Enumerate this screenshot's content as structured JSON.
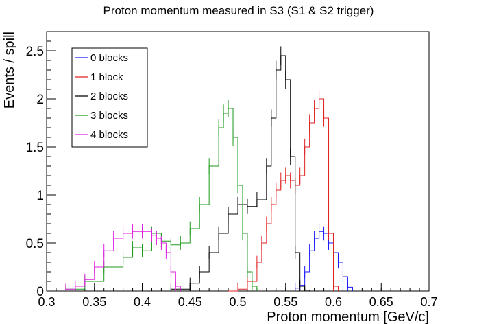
{
  "chart_data": {
    "type": "line",
    "title": "Proton momentum measured in S3 (S1 & S2 trigger)",
    "xlabel": "Proton momentum [GeV/c]",
    "ylabel": "Events / spill",
    "xlim": [
      0.3,
      0.7
    ],
    "ylim": [
      0,
      2.7
    ],
    "xticks": [
      "0.3",
      "0.35",
      "0.4",
      "0.45",
      "0.5",
      "0.55",
      "0.6",
      "0.65",
      "0.7"
    ],
    "yticks": [
      "0",
      "0.5",
      "1",
      "1.5",
      "2",
      "2.5"
    ],
    "legend_position": "top-left",
    "series": [
      {
        "name": "0 blocks",
        "color": "#1a1aff",
        "x": [
          0.56,
          0.565,
          0.57,
          0.575,
          0.58,
          0.585,
          0.59,
          0.595,
          0.6,
          0.605,
          0.61,
          0.615,
          0.62
        ],
        "y": [
          0.03,
          0.06,
          0.2,
          0.42,
          0.55,
          0.62,
          0.6,
          0.5,
          0.4,
          0.3,
          0.15,
          0.04,
          0.0
        ]
      },
      {
        "name": "1 block",
        "color": "#e02020",
        "x": [
          0.49,
          0.5,
          0.51,
          0.52,
          0.525,
          0.53,
          0.535,
          0.54,
          0.545,
          0.55,
          0.555,
          0.56,
          0.565,
          0.57,
          0.575,
          0.58,
          0.585,
          0.59,
          0.595,
          0.6,
          0.605
        ],
        "y": [
          0.0,
          0.02,
          0.1,
          0.3,
          0.5,
          0.7,
          0.9,
          1.05,
          1.15,
          1.2,
          1.15,
          1.1,
          1.2,
          1.5,
          1.75,
          1.9,
          2.0,
          1.8,
          0.6,
          0.05,
          0.0
        ]
      },
      {
        "name": "2 blocks",
        "color": "#000000",
        "x": [
          0.43,
          0.45,
          0.46,
          0.47,
          0.48,
          0.49,
          0.5,
          0.51,
          0.52,
          0.53,
          0.535,
          0.54,
          0.545,
          0.55,
          0.555,
          0.56,
          0.565,
          0.57,
          0.575
        ],
        "y": [
          0.02,
          0.08,
          0.2,
          0.4,
          0.6,
          0.8,
          0.9,
          0.88,
          0.95,
          1.3,
          1.8,
          2.3,
          2.45,
          2.2,
          1.4,
          0.4,
          0.05,
          0.01,
          0.0
        ]
      },
      {
        "name": "3 blocks",
        "color": "#1c9a1c",
        "x": [
          0.32,
          0.34,
          0.36,
          0.38,
          0.39,
          0.4,
          0.41,
          0.42,
          0.43,
          0.44,
          0.45,
          0.46,
          0.47,
          0.48,
          0.485,
          0.49,
          0.495,
          0.5,
          0.505,
          0.51,
          0.515,
          0.52
        ],
        "y": [
          0.02,
          0.1,
          0.25,
          0.35,
          0.45,
          0.42,
          0.6,
          0.52,
          0.48,
          0.5,
          0.65,
          0.9,
          1.3,
          1.7,
          1.85,
          1.9,
          1.6,
          1.1,
          0.6,
          0.2,
          0.05,
          0.0
        ]
      },
      {
        "name": "4 blocks",
        "color": "#e020e0",
        "x": [
          0.32,
          0.33,
          0.34,
          0.35,
          0.36,
          0.37,
          0.38,
          0.39,
          0.4,
          0.41,
          0.415,
          0.42,
          0.425,
          0.43,
          0.435,
          0.44
        ],
        "y": [
          0.02,
          0.05,
          0.12,
          0.25,
          0.42,
          0.55,
          0.6,
          0.62,
          0.62,
          0.58,
          0.55,
          0.5,
          0.4,
          0.2,
          0.05,
          0.0
        ]
      }
    ]
  }
}
